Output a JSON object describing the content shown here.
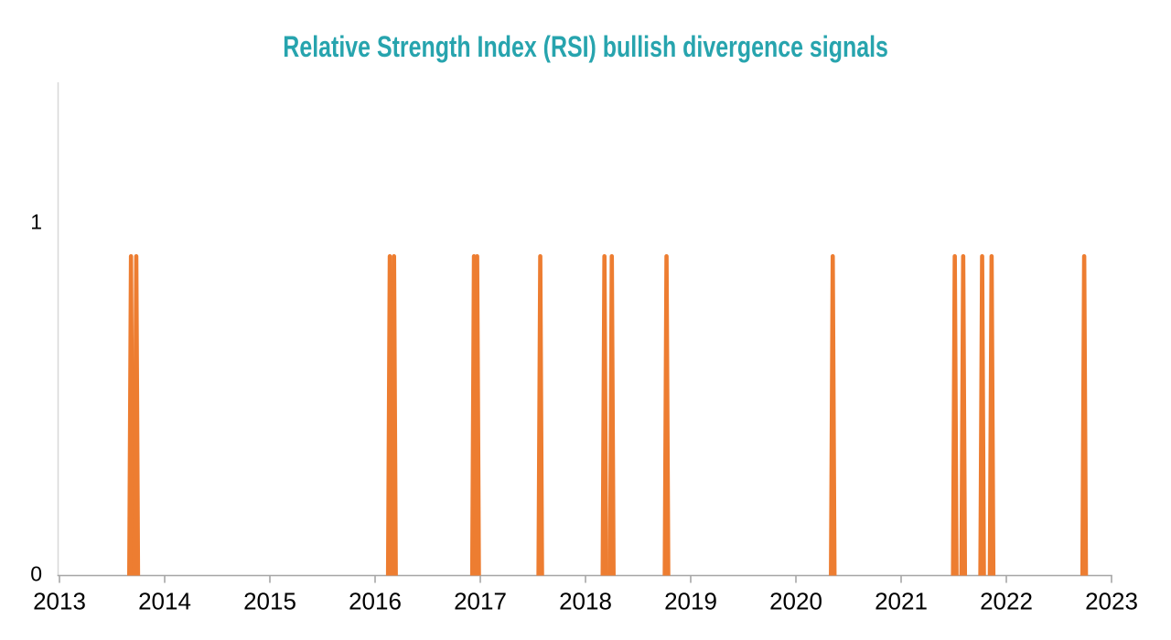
{
  "chart_data": {
    "type": "line",
    "title": "Relative Strength Index (RSI) bullish divergence signals",
    "xlabel": "",
    "ylabel": "",
    "xlim": [
      2013,
      2023
    ],
    "ylim": [
      0,
      1.39
    ],
    "x_ticks": [
      2013,
      2014,
      2015,
      2016,
      2017,
      2018,
      2019,
      2020,
      2021,
      2022,
      2023
    ],
    "y_ticks": [
      0,
      1
    ],
    "grid": false,
    "legend": "none",
    "series": [
      {
        "name": "RSI bullish divergence signal",
        "baseline_value": 0,
        "spike_value": 0.9,
        "spike_times": [
          2013.68,
          2013.73,
          2016.14,
          2016.18,
          2016.94,
          2016.97,
          2017.57,
          2018.18,
          2018.25,
          2018.77,
          2020.35,
          2021.51,
          2021.59,
          2021.77,
          2021.86,
          2022.74
        ]
      }
    ],
    "colors": {
      "spike": "#ED7D31",
      "title": "#27A4AE",
      "axis": "#A6A6A6",
      "y_axis_line": "#D9D9D9",
      "tick_label": "#000000"
    }
  }
}
